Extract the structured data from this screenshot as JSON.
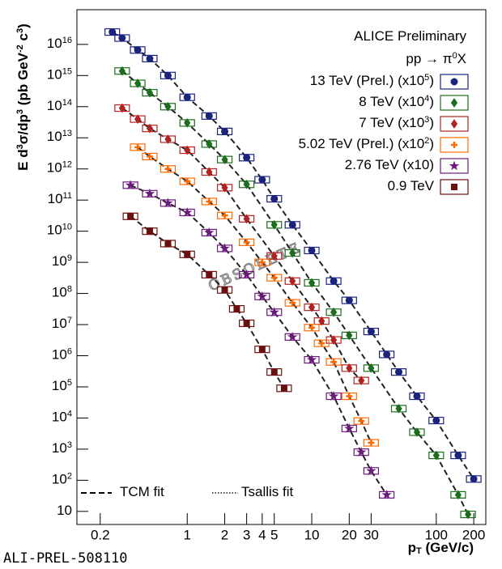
{
  "chart_data": {
    "type": "scatter",
    "title": "ALICE Preliminary",
    "subtitle": "pp → π^0X",
    "xlabel": "p_T (GeV/c)",
    "ylabel": "E d^3σ/dp^3 (pb GeV^-2 c^3)",
    "annotations": {
      "watermark": "OBSOLETE",
      "id": "ALI-PREL-508110",
      "fit1": "TCM fit",
      "fit2": "Tsallis fit"
    },
    "xlog": true,
    "ylog": true,
    "xlim": [
      0.13,
      250
    ],
    "ylim": [
      3.8,
      1.3e+17
    ],
    "xticks": [
      0.2,
      1,
      2,
      3,
      4,
      5,
      10,
      20,
      30,
      100,
      200
    ],
    "yticks": [
      {
        "value": 10,
        "label": "10"
      },
      {
        "value": 100,
        "label": "10^2"
      },
      {
        "value": 1000,
        "label": "10^3"
      },
      {
        "value": 10000,
        "label": "10^4"
      },
      {
        "value": 100000,
        "label": "10^5"
      },
      {
        "value": 1000000,
        "label": "10^6"
      },
      {
        "value": 10000000,
        "label": "10^7"
      },
      {
        "value": 100000000,
        "label": "10^8"
      },
      {
        "value": 1000000000,
        "label": "10^9"
      },
      {
        "value": 10000000000,
        "label": "10^10"
      },
      {
        "value": 100000000000,
        "label": "10^11"
      },
      {
        "value": 1000000000000,
        "label": "10^12"
      },
      {
        "value": 10000000000000,
        "label": "10^13"
      },
      {
        "value": 100000000000000,
        "label": "10^14"
      },
      {
        "value": 1000000000000000,
        "label": "10^15"
      },
      {
        "value": 10000000000000000,
        "label": "10^16"
      }
    ],
    "series": [
      {
        "name": "13 TeV (Prel.) (x10^5)",
        "color": "#1a237e",
        "marker": "circle",
        "x": [
          0.25,
          0.3,
          0.4,
          0.5,
          0.7,
          1,
          1.5,
          2,
          3,
          4,
          5,
          7,
          10,
          15,
          20,
          30,
          40,
          50,
          70,
          100,
          150,
          200
        ],
        "values": [
          2.5e+16,
          1.6e+16,
          6600000000000000.0,
          3500000000000000.0,
          1000000000000000.0,
          200000000000000.0,
          50000000000000.0,
          16000000000000.0,
          2300000000000.0,
          450000000000.0,
          110000000000.0,
          16000000000.0,
          2400000000.0,
          250000000.0,
          60000000.0,
          6000000.0,
          1100000.0,
          300000.0,
          50000.0,
          8300,
          630,
          110
        ]
      },
      {
        "name": "8 TeV (x10^4)",
        "color": "#1b6e1b",
        "marker": "diamond",
        "x": [
          0.3,
          0.4,
          0.5,
          0.7,
          1,
          1.5,
          2,
          3,
          5,
          7,
          10,
          15,
          20,
          30,
          50,
          70,
          100,
          150,
          180
        ],
        "values": [
          1400000000000000.0,
          560000000000000.0,
          280000000000000.0,
          100000000000000.0,
          30000000000000.0,
          6300000000000.0,
          2000000000000.0,
          320000000000.0,
          16000000000.0,
          2000000000.0,
          220000000.0,
          25000000.0,
          4500000.0,
          400000.0,
          20000.0,
          3500,
          630,
          34,
          8
        ]
      },
      {
        "name": "7 TeV (x10^3)",
        "color": "#b22222",
        "marker": "diamond",
        "x": [
          0.3,
          0.4,
          0.5,
          0.7,
          1,
          1.5,
          2,
          3,
          5,
          7,
          10,
          12,
          15,
          20,
          25
        ],
        "values": [
          90000000000000.0,
          40000000000000.0,
          20000000000000.0,
          9000000000000.0,
          4000000000000.0,
          800000000000.0,
          250000000000.0,
          25000000000.0,
          1600000000.0,
          250000000.0,
          36000000.0,
          13000000.0,
          3200000.0,
          400000.0,
          160000.0
        ]
      },
      {
        "name": "5.02 TeV (Prel.) (x10^2)",
        "color": "#ff6a00",
        "marker": "cross",
        "x": [
          0.4,
          0.5,
          0.7,
          1,
          1.5,
          2,
          3,
          4,
          5,
          7,
          10,
          12,
          15,
          20,
          25,
          30
        ],
        "values": [
          5000000000000.0,
          2500000000000.0,
          1000000000000.0,
          400000000000.0,
          90000000000.0,
          32000000000.0,
          4400000000.0,
          1000000000.0,
          320000000.0,
          50000000.0,
          8000000.0,
          2500000.0,
          630000.0,
          50000.0,
          8000,
          1600
        ]
      },
      {
        "name": "2.76 TeV (x10)",
        "color": "#6a1b7a",
        "marker": "star",
        "x": [
          0.35,
          0.5,
          0.7,
          1,
          1.5,
          2,
          3,
          4,
          5,
          7,
          10,
          15,
          20,
          25,
          30,
          40
        ],
        "values": [
          300000000000.0,
          160000000000.0,
          80000000000.0,
          40000000000.0,
          9000000000.0,
          2800000000.0,
          400000000.0,
          80000000.0,
          25000000.0,
          4000000.0,
          740000.0,
          50000.0,
          4600,
          800,
          200,
          34
        ]
      },
      {
        "name": "0.9 TeV",
        "color": "#6b0f0f",
        "marker": "square",
        "x": [
          0.35,
          0.5,
          0.7,
          1,
          1.5,
          2,
          2.5,
          3,
          4,
          5,
          6
        ],
        "values": [
          30000000000.0,
          10000000000.0,
          4000000000.0,
          1800000000.0,
          400000000.0,
          130000000.0,
          32000000.0,
          11000000.0,
          1600000.0,
          300000.0,
          90000.0
        ]
      }
    ]
  }
}
